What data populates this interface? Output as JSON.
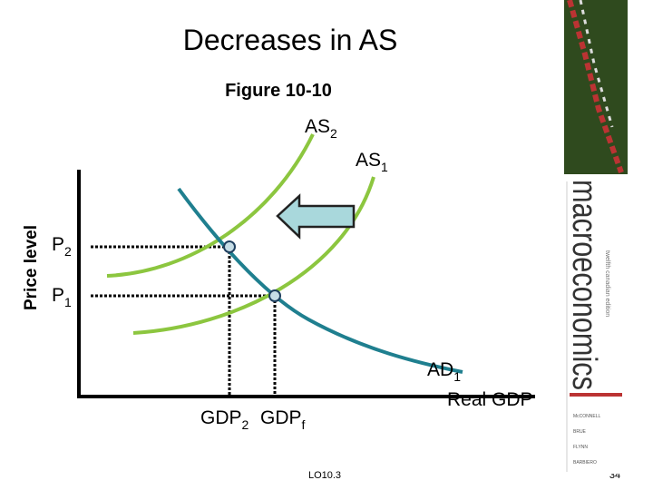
{
  "header": {
    "title": "Decreases in AS",
    "figure": "Figure 10-10"
  },
  "axes": {
    "y_label": "Price level",
    "x_label": "Real GDP"
  },
  "labels": {
    "as2": {
      "base": "AS",
      "sub": "2"
    },
    "as1": {
      "base": "AS",
      "sub": "1"
    },
    "ad1": {
      "base": "AD",
      "sub": "1"
    },
    "p2": {
      "base": "P",
      "sub": "2"
    },
    "p1": {
      "base": "P",
      "sub": "1"
    },
    "gdp2": {
      "base": "GDP",
      "sub": "2"
    },
    "gdpf": {
      "base": "GDP",
      "sub": "f"
    }
  },
  "footer": {
    "objective": "LO10.3",
    "page": "34"
  },
  "book": {
    "title": "macroeconomics",
    "edition": "twelfth canadian edition",
    "authors": [
      "McCONNELL",
      "BRUE",
      "FLYNN",
      "BARBIERO"
    ]
  }
}
